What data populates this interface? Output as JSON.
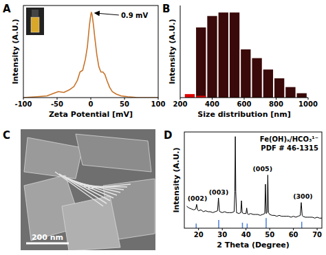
{
  "chart_data": [
    {
      "panel": "A",
      "type": "line",
      "x_label": "Zeta Potential [mV]",
      "y_label": "Intensity (A.U.)",
      "x": [
        -100,
        -80,
        -65,
        -55,
        -48,
        -40,
        -32,
        -25,
        -20,
        -16,
        -12,
        -8,
        -5,
        -2,
        0,
        0.9,
        2,
        4,
        6,
        9,
        12,
        15,
        18,
        21,
        24,
        28,
        32,
        38,
        45,
        55,
        70,
        100
      ],
      "values": [
        0.0,
        0.01,
        0.02,
        0.05,
        0.07,
        0.06,
        0.09,
        0.13,
        0.2,
        0.3,
        0.32,
        0.45,
        0.6,
        0.85,
        0.97,
        1.0,
        0.97,
        0.85,
        0.7,
        0.5,
        0.36,
        0.3,
        0.3,
        0.27,
        0.2,
        0.12,
        0.07,
        0.04,
        0.02,
        0.01,
        0.0,
        0.0
      ],
      "color": "#c8742a",
      "xlim": [
        -100,
        100
      ],
      "xticks": [
        -100,
        -50,
        0,
        50,
        100
      ],
      "ylim": [
        0,
        1.08
      ],
      "tick_labels": "x",
      "annotations": [
        {
          "text": "0.9 mV",
          "x": 0.9,
          "y": 1.0
        }
      ]
    },
    {
      "panel": "B",
      "type": "bar",
      "x_label": "Size distribution [nm]",
      "y_label": "Intensity (A.U.)",
      "x": [
        260,
        330,
        400,
        470,
        540,
        610,
        680,
        750,
        820,
        890,
        960
      ],
      "series": [
        {
          "color": "#3a0909",
          "values": [
            0.0,
            0.8,
            0.93,
            0.97,
            0.97,
            0.55,
            0.45,
            0.32,
            0.22,
            0.12,
            0.05
          ]
        },
        {
          "color": "#e00000",
          "values": [
            0.04,
            0.02,
            0.0,
            0.0,
            0.0,
            0.0,
            0.0,
            0.0,
            0.0,
            0.0,
            0.0
          ]
        }
      ],
      "xlim": [
        200,
        1000
      ],
      "xticks": [
        200,
        400,
        600,
        800,
        1000
      ],
      "ylim": [
        0,
        1.05
      ],
      "tick_labels": "x"
    },
    {
      "panel": "D",
      "type": "line",
      "x_label": "2 Theta (Degree)",
      "y_label": "Intensity (A.U.)",
      "x": [
        15,
        16,
        17,
        18,
        18.8,
        19.2,
        19.6,
        20,
        21,
        22,
        23,
        24,
        25,
        26,
        27,
        28,
        28.4,
        28.8,
        29,
        30,
        31,
        32,
        33,
        34,
        35,
        35.3,
        35.5,
        35.7,
        36,
        37,
        37.8,
        38.1,
        38.4,
        39,
        40,
        40.3,
        40.6,
        41,
        42,
        43,
        44,
        45,
        46,
        47,
        47.9,
        48.2,
        48.5,
        48.9,
        49.2,
        49.5,
        50,
        51,
        52,
        53,
        54,
        55,
        56,
        57,
        58,
        59,
        60,
        61,
        62,
        62.9,
        63.3,
        63.7,
        64,
        65,
        66,
        67,
        68,
        69,
        70,
        71,
        72
      ],
      "values": [
        0.24,
        0.22,
        0.21,
        0.2,
        0.21,
        0.26,
        0.2,
        0.19,
        0.2,
        0.18,
        0.19,
        0.18,
        0.18,
        0.17,
        0.18,
        0.19,
        0.33,
        0.19,
        0.18,
        0.17,
        0.18,
        0.17,
        0.17,
        0.17,
        0.18,
        0.4,
        1.0,
        0.4,
        0.17,
        0.16,
        0.17,
        0.3,
        0.17,
        0.16,
        0.16,
        0.22,
        0.16,
        0.15,
        0.16,
        0.15,
        0.15,
        0.15,
        0.14,
        0.15,
        0.16,
        0.48,
        0.16,
        0.17,
        0.58,
        0.17,
        0.15,
        0.14,
        0.14,
        0.13,
        0.14,
        0.13,
        0.13,
        0.13,
        0.13,
        0.12,
        0.13,
        0.12,
        0.13,
        0.14,
        0.28,
        0.14,
        0.13,
        0.12,
        0.12,
        0.12,
        0.12,
        0.11,
        0.12,
        0.11,
        0.11
      ],
      "color": "#000000",
      "xlim": [
        14,
        72
      ],
      "xticks": [
        20,
        30,
        40,
        50,
        60,
        70
      ],
      "ylim": [
        0,
        1.05
      ],
      "tick_labels": "x",
      "reference_peaks": {
        "color": "#4a7fd4",
        "x": [
          19,
          28.5,
          38.5,
          40.5,
          48.5,
          63.5
        ],
        "values": [
          0.05,
          0.09,
          0.06,
          0.05,
          0.11,
          0.07
        ]
      },
      "peak_labels": [
        {
          "text": "(002)",
          "x": 19.5,
          "y": 0.3
        },
        {
          "text": "(003)",
          "x": 28.5,
          "y": 0.37
        },
        {
          "text": "(005)",
          "x": 47,
          "y": 0.62
        },
        {
          "text": "(300)",
          "x": 64,
          "y": 0.32
        }
      ],
      "legend_text": [
        "Fe(OH)ₓ/HCO₃¹⁻",
        "PDF # 46-1315"
      ]
    }
  ],
  "image_panel": {
    "panel": "C",
    "scale_bar": "200 nm"
  }
}
